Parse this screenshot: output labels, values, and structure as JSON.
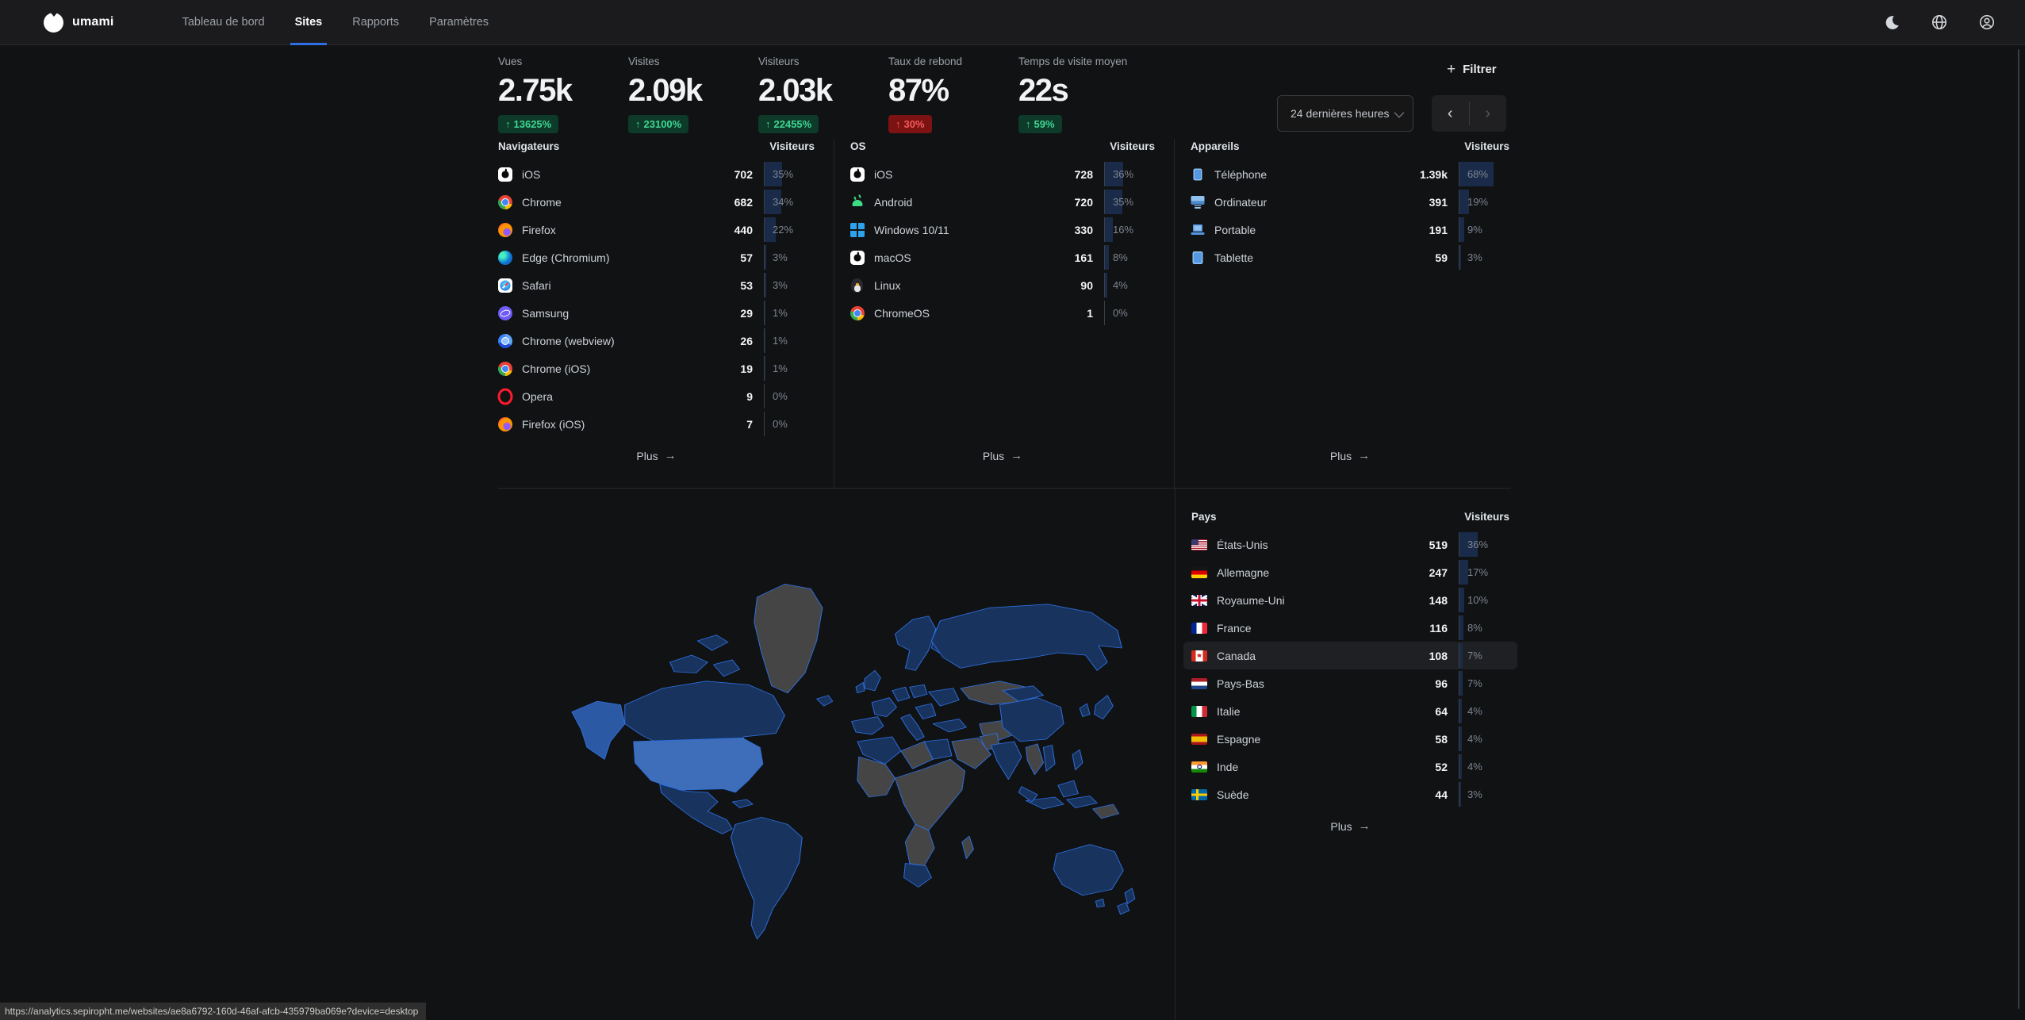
{
  "nav": {
    "brand": "umami",
    "items": [
      {
        "label": "Tableau de bord"
      },
      {
        "label": "Sites",
        "active": true
      },
      {
        "label": "Rapports"
      },
      {
        "label": "Paramètres"
      }
    ]
  },
  "metrics": [
    {
      "label": "Vues",
      "value": "2.75k",
      "arrow": "↑",
      "change": "13625%"
    },
    {
      "label": "Visites",
      "value": "2.09k",
      "arrow": "↑",
      "change": "23100%"
    },
    {
      "label": "Visiteurs",
      "value": "2.03k",
      "arrow": "↑",
      "change": "22455%"
    },
    {
      "label": "Taux de rebond",
      "value": "87%",
      "arrow": "↑",
      "change": "30%",
      "positive": false
    },
    {
      "label": "Temps de visite moyen",
      "value": "22s",
      "arrow": "↑",
      "change": "59%"
    }
  ],
  "controls": {
    "plus": "+",
    "filter_label": "Filtrer",
    "date_range": "24 dernières heures",
    "prev": "‹",
    "next": "›",
    "more_arrow": "→"
  },
  "sections": {
    "browsers": {
      "title": "Navigateurs",
      "col": "Visiteurs",
      "more": "Plus",
      "rows": [
        {
          "label": "iOS",
          "icon": "apple",
          "value": "702",
          "pct": 35
        },
        {
          "label": "Chrome",
          "icon": "chrome",
          "value": "682",
          "pct": 34
        },
        {
          "label": "Firefox",
          "icon": "firefox",
          "value": "440",
          "pct": 22
        },
        {
          "label": "Edge (Chromium)",
          "icon": "edge",
          "value": "57",
          "pct": 3
        },
        {
          "label": "Safari",
          "icon": "safari",
          "value": "53",
          "pct": 3
        },
        {
          "label": "Samsung",
          "icon": "samsung",
          "value": "29",
          "pct": 1
        },
        {
          "label": "Chrome (webview)",
          "icon": "chrome-webview",
          "value": "26",
          "pct": 1
        },
        {
          "label": "Chrome (iOS)",
          "icon": "chrome-ios",
          "value": "19",
          "pct": 1
        },
        {
          "label": "Opera",
          "icon": "opera",
          "value": "9",
          "pct": 0
        },
        {
          "label": "Firefox (iOS)",
          "icon": "firefox-ios",
          "value": "7",
          "pct": 0
        }
      ]
    },
    "os": {
      "title": "OS",
      "col": "Visiteurs",
      "more": "Plus",
      "rows": [
        {
          "label": "iOS",
          "icon": "apple",
          "value": "728",
          "pct": 36
        },
        {
          "label": "Android",
          "icon": "android",
          "value": "720",
          "pct": 35
        },
        {
          "label": "Windows 10/11",
          "icon": "windows",
          "value": "330",
          "pct": 16
        },
        {
          "label": "macOS",
          "icon": "apple",
          "value": "161",
          "pct": 8
        },
        {
          "label": "Linux",
          "icon": "linux",
          "value": "90",
          "pct": 4
        },
        {
          "label": "ChromeOS",
          "icon": "chromeos",
          "value": "1",
          "pct": 0
        }
      ]
    },
    "devices": {
      "title": "Appareils",
      "col": "Visiteurs",
      "more": "Plus",
      "rows": [
        {
          "label": "Téléphone",
          "icon": "phone",
          "value": "1.39k",
          "pct": 68
        },
        {
          "label": "Ordinateur",
          "icon": "desktop",
          "value": "391",
          "pct": 19
        },
        {
          "label": "Portable",
          "icon": "laptop",
          "value": "191",
          "pct": 9
        },
        {
          "label": "Tablette",
          "icon": "tablet",
          "value": "59",
          "pct": 3
        }
      ]
    },
    "countries": {
      "title": "Pays",
      "col": "Visiteurs",
      "more": "Plus",
      "rows": [
        {
          "label": "États-Unis",
          "icon": "flag-us",
          "value": "519",
          "pct": 36
        },
        {
          "label": "Allemagne",
          "icon": "flag-de",
          "value": "247",
          "pct": 17
        },
        {
          "label": "Royaume-Uni",
          "icon": "flag-gb",
          "value": "148",
          "pct": 10
        },
        {
          "label": "France",
          "icon": "flag-fr",
          "value": "116",
          "pct": 8
        },
        {
          "label": "Canada",
          "icon": "flag-ca",
          "value": "108",
          "pct": 7,
          "highlight": true
        },
        {
          "label": "Pays-Bas",
          "icon": "flag-nl",
          "value": "96",
          "pct": 7
        },
        {
          "label": "Italie",
          "icon": "flag-it",
          "value": "64",
          "pct": 4
        },
        {
          "label": "Espagne",
          "icon": "flag-es",
          "value": "58",
          "pct": 4
        },
        {
          "label": "Inde",
          "icon": "flag-in",
          "value": "52",
          "pct": 4
        },
        {
          "label": "Suède",
          "icon": "flag-se",
          "value": "44",
          "pct": 3
        }
      ]
    }
  },
  "statusbar": {
    "url": "https://analytics.sepiropht.me/websites/ae8a6792-160d-46af-afcb-435979ba069e?device=desktop"
  },
  "theme": {
    "accent": "#2e6fe8",
    "positive_text": "#3fd693",
    "positive_bg": "#0d3a29",
    "negative_text": "#f25c5c",
    "negative_bg": "#7c1212",
    "percent_bar": "#1a2b49",
    "map_country": "#18335d",
    "map_top_country": "#3e6db9",
    "map_no_data": "#454545",
    "map_border": "#2e72e6"
  }
}
